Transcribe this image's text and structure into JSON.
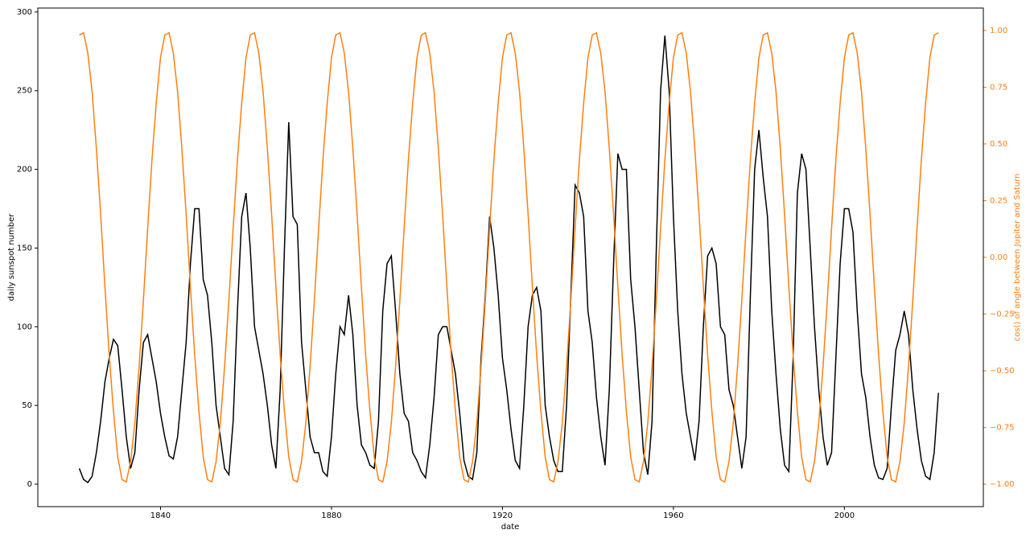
{
  "chart_data": {
    "type": "line",
    "xlabel": "date",
    "ylabel": "daily sunspot number",
    "y2label": "cos() of angle between Jupiter and Saturn",
    "xlim": [
      1811.3,
      2032.5
    ],
    "ylim": [
      -14.3,
      302.5
    ],
    "y2lim": [
      -1.099,
      1.099
    ],
    "xticks": [
      1840,
      1880,
      1920,
      1960,
      2000
    ],
    "yticks": [
      0,
      50,
      100,
      150,
      200,
      250,
      300
    ],
    "y2ticks": [
      {
        "value": -1,
        "label": "−1.00"
      },
      {
        "value": -0.75,
        "label": "−0.75"
      },
      {
        "value": -0.5,
        "label": "−0.50"
      },
      {
        "value": -0.25,
        "label": "−0.25"
      },
      {
        "value": 0,
        "label": "0.00"
      },
      {
        "value": 0.25,
        "label": "0.25"
      },
      {
        "value": 0.5,
        "label": "0.50"
      },
      {
        "value": 0.75,
        "label": "0.75"
      },
      {
        "value": 1,
        "label": "1.00"
      }
    ],
    "y2color": "#ff7f0e",
    "x": [
      1821,
      1822,
      1823,
      1824,
      1825,
      1826,
      1827,
      1828,
      1829,
      1830,
      1831,
      1832,
      1833,
      1834,
      1835,
      1836,
      1837,
      1838,
      1839,
      1840,
      1841,
      1842,
      1843,
      1844,
      1845,
      1846,
      1847,
      1848,
      1849,
      1850,
      1851,
      1852,
      1853,
      1854,
      1855,
      1856,
      1857,
      1858,
      1859,
      1860,
      1861,
      1862,
      1863,
      1864,
      1865,
      1866,
      1867,
      1868,
      1869,
      1870,
      1871,
      1872,
      1873,
      1874,
      1875,
      1876,
      1877,
      1878,
      1879,
      1880,
      1881,
      1882,
      1883,
      1884,
      1885,
      1886,
      1887,
      1888,
      1889,
      1890,
      1891,
      1892,
      1893,
      1894,
      1895,
      1896,
      1897,
      1898,
      1899,
      1900,
      1901,
      1902,
      1903,
      1904,
      1905,
      1906,
      1907,
      1908,
      1909,
      1910,
      1911,
      1912,
      1913,
      1914,
      1915,
      1916,
      1917,
      1918,
      1919,
      1920,
      1921,
      1922,
      1923,
      1924,
      1925,
      1926,
      1927,
      1928,
      1929,
      1930,
      1931,
      1932,
      1933,
      1934,
      1935,
      1936,
      1937,
      1938,
      1939,
      1940,
      1941,
      1942,
      1943,
      1944,
      1945,
      1946,
      1947,
      1948,
      1949,
      1950,
      1951,
      1952,
      1953,
      1954,
      1955,
      1956,
      1957,
      1958,
      1959,
      1960,
      1961,
      1962,
      1963,
      1964,
      1965,
      1966,
      1967,
      1968,
      1969,
      1970,
      1971,
      1972,
      1973,
      1974,
      1975,
      1976,
      1977,
      1978,
      1979,
      1980,
      1981,
      1982,
      1983,
      1984,
      1985,
      1986,
      1987,
      1988,
      1989,
      1990,
      1991,
      1992,
      1993,
      1994,
      1995,
      1996,
      1997,
      1998,
      1999,
      2000,
      2001,
      2002,
      2003,
      2004,
      2005,
      2006,
      2007,
      2008,
      2009,
      2010,
      2011,
      2012,
      2013,
      2014,
      2015,
      2016,
      2017,
      2018,
      2019,
      2020,
      2021,
      2022
    ],
    "series": [
      {
        "color": "#000000",
        "values": [
          10,
          3,
          1,
          5,
          20,
          40,
          65,
          80,
          92,
          88,
          60,
          30,
          10,
          20,
          60,
          90,
          95,
          80,
          65,
          45,
          30,
          18,
          16,
          30,
          60,
          90,
          140,
          175,
          175,
          130,
          120,
          90,
          50,
          30,
          10,
          6,
          40,
          110,
          170,
          185,
          150,
          100,
          85,
          70,
          50,
          25,
          10,
          60,
          150,
          230,
          170,
          165,
          90,
          60,
          30,
          20,
          20,
          8,
          5,
          30,
          70,
          100,
          95,
          120,
          95,
          50,
          25,
          20,
          12,
          10,
          40,
          110,
          140,
          145,
          110,
          70,
          45,
          40,
          20,
          15,
          8,
          4,
          25,
          55,
          95,
          100,
          100,
          85,
          70,
          45,
          15,
          5,
          3,
          20,
          80,
          120,
          170,
          150,
          120,
          80,
          60,
          35,
          15,
          10,
          50,
          100,
          120,
          125,
          110,
          50,
          30,
          15,
          8,
          8,
          50,
          120,
          190,
          185,
          170,
          110,
          90,
          55,
          30,
          12,
          60,
          140,
          210,
          200,
          200,
          130,
          100,
          60,
          20,
          6,
          40,
          150,
          250,
          285,
          250,
          170,
          110,
          70,
          45,
          30,
          15,
          40,
          100,
          145,
          150,
          140,
          100,
          95,
          60,
          50,
          30,
          10,
          30,
          120,
          200,
          225,
          195,
          170,
          110,
          70,
          35,
          12,
          8,
          80,
          185,
          210,
          200,
          150,
          100,
          60,
          30,
          12,
          20,
          80,
          140,
          175,
          175,
          160,
          110,
          70,
          55,
          30,
          12,
          4,
          3,
          10,
          50,
          85,
          95,
          110,
          95,
          60,
          35,
          15,
          5,
          3,
          20,
          58
        ]
      },
      {
        "color": "#ff7f0e",
        "axis": "y2",
        "values": [
          0.98,
          0.99,
          0.9,
          0.73,
          0.48,
          0.19,
          -0.13,
          -0.43,
          -0.68,
          -0.88,
          -0.98,
          -0.99,
          -0.9,
          -0.73,
          -0.48,
          -0.19,
          0.13,
          0.43,
          0.68,
          0.88,
          0.98,
          0.99,
          0.9,
          0.73,
          0.48,
          0.19,
          -0.13,
          -0.43,
          -0.68,
          -0.88,
          -0.98,
          -0.99,
          -0.9,
          -0.73,
          -0.48,
          -0.19,
          0.13,
          0.43,
          0.68,
          0.88,
          0.98,
          0.99,
          0.9,
          0.73,
          0.48,
          0.19,
          -0.13,
          -0.43,
          -0.68,
          -0.88,
          -0.98,
          -0.99,
          -0.9,
          -0.73,
          -0.48,
          -0.19,
          0.13,
          0.43,
          0.68,
          0.88,
          0.98,
          0.99,
          0.9,
          0.73,
          0.48,
          0.19,
          -0.13,
          -0.43,
          -0.68,
          -0.88,
          -0.98,
          -0.99,
          -0.9,
          -0.73,
          -0.48,
          -0.19,
          0.13,
          0.43,
          0.68,
          0.88,
          0.98,
          0.99,
          0.9,
          0.73,
          0.48,
          0.19,
          -0.13,
          -0.43,
          -0.68,
          -0.88,
          -0.98,
          -0.99,
          -0.9,
          -0.73,
          -0.48,
          -0.19,
          0.13,
          0.43,
          0.68,
          0.88,
          0.98,
          0.99,
          0.9,
          0.73,
          0.48,
          0.19,
          -0.13,
          -0.43,
          -0.68,
          -0.88,
          -0.98,
          -0.99,
          -0.9,
          -0.73,
          -0.48,
          -0.19,
          0.13,
          0.43,
          0.68,
          0.88,
          0.98,
          0.99,
          0.9,
          0.73,
          0.48,
          0.19,
          -0.13,
          -0.43,
          -0.68,
          -0.88,
          -0.98,
          -0.99,
          -0.9,
          -0.73,
          -0.48,
          -0.19,
          0.13,
          0.43,
          0.68,
          0.88,
          0.98,
          0.99,
          0.9,
          0.73,
          0.48,
          0.19,
          -0.13,
          -0.43,
          -0.68,
          -0.88,
          -0.98,
          -0.99,
          -0.9,
          -0.73,
          -0.48,
          -0.19,
          0.13,
          0.43,
          0.68,
          0.88,
          0.98,
          0.99,
          0.9,
          0.73,
          0.48,
          0.19,
          -0.13,
          -0.43,
          -0.68,
          -0.88,
          -0.98,
          -0.99,
          -0.9,
          -0.73,
          -0.48,
          -0.19,
          0.13,
          0.43,
          0.68,
          0.88,
          0.98,
          0.99,
          0.9,
          0.73,
          0.48,
          0.19,
          -0.13,
          -0.43,
          -0.68,
          -0.88,
          -0.98,
          -0.99,
          -0.9,
          -0.73,
          -0.48,
          -0.19,
          0.13,
          0.43,
          0.68,
          0.88,
          0.98,
          0.99
        ]
      }
    ]
  }
}
